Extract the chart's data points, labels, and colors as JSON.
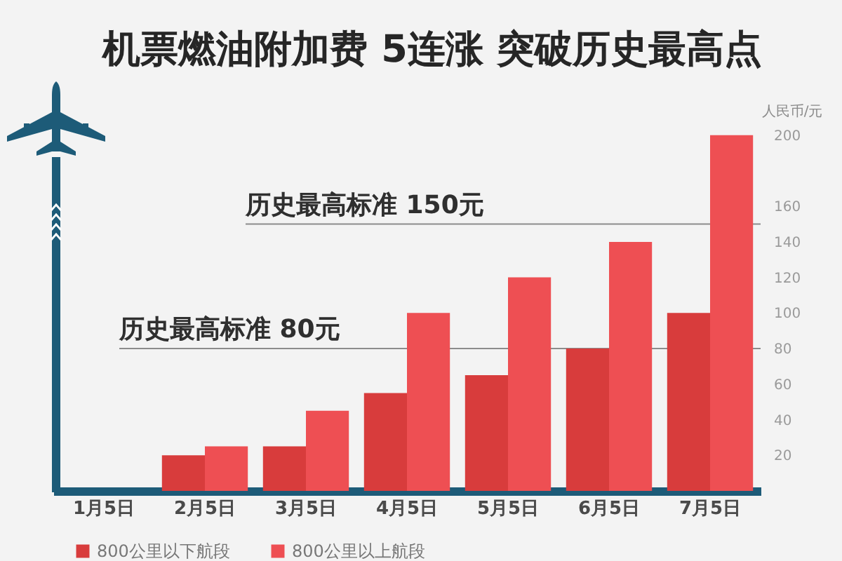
{
  "chart_data": {
    "type": "bar",
    "title": "机票燃油附加费 5连涨 突破历史最高点",
    "ylabel": "人民币/元",
    "categories": [
      "1月5日",
      "2月5日",
      "3月5日",
      "4月5日",
      "5月5日",
      "6月5日",
      "7月5日"
    ],
    "series": [
      {
        "name": "800公里以下航段",
        "color": "#d83c3c",
        "values": [
          null,
          20,
          25,
          55,
          65,
          80,
          100
        ]
      },
      {
        "name": "800公里以上航段",
        "color": "#ee4f53",
        "values": [
          null,
          25,
          45,
          100,
          120,
          140,
          200
        ]
      }
    ],
    "ylim": [
      0,
      205
    ],
    "yticks": [
      20,
      40,
      60,
      80,
      100,
      120,
      140,
      160,
      200
    ],
    "ref_lines": [
      {
        "axis": "y",
        "value": 150,
        "label": "历史最高标准 150元"
      },
      {
        "axis": "y",
        "value": 80,
        "label": "历史最高标准 80元"
      }
    ],
    "grid": false,
    "legend": "bottom left"
  }
}
